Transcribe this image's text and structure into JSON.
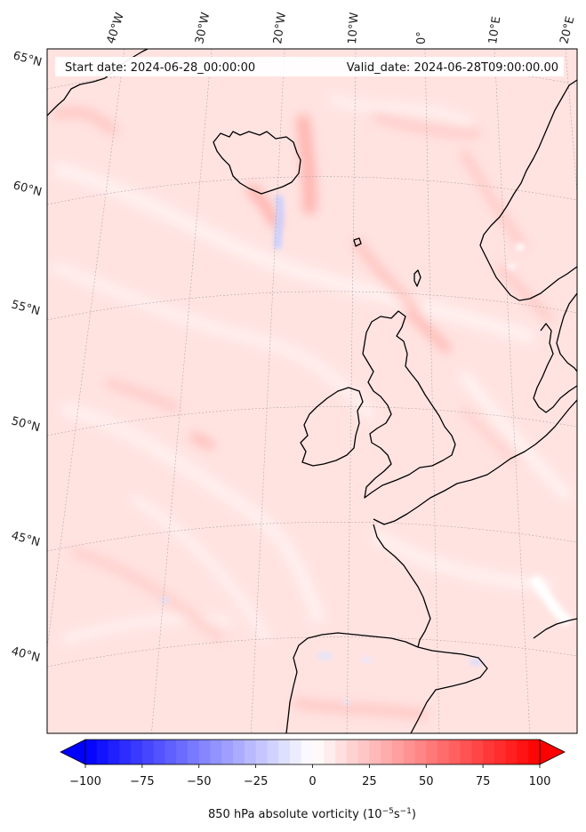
{
  "header": {
    "start_date": "Start date: 2024-06-28_00:00:00",
    "valid_date": "Valid_date: 2024-06-28T09:00:00.00"
  },
  "map": {
    "lon_labels": [
      "40°W",
      "30°W",
      "20°W",
      "10°W",
      "0°",
      "10°E",
      "20°E"
    ],
    "lat_labels": [
      "65°N",
      "60°N",
      "55°N",
      "50°N",
      "45°N",
      "40°N"
    ],
    "coastline_color": "#000000",
    "field_base_color": "#ffe3e1"
  },
  "colorbar": {
    "vmin": -100,
    "vmax": 100,
    "ticks": [
      "−100",
      "−75",
      "−50",
      "−25",
      "0",
      "25",
      "50",
      "75",
      "100"
    ],
    "label_text": "850 hPa absolute vorticity (10",
    "label_exp1": "−5",
    "label_mid": "s",
    "label_exp2": "−1",
    "label_close": ")",
    "color_min": "#0000ff",
    "color_mid": "#ffffff",
    "color_max": "#ff0000"
  }
}
